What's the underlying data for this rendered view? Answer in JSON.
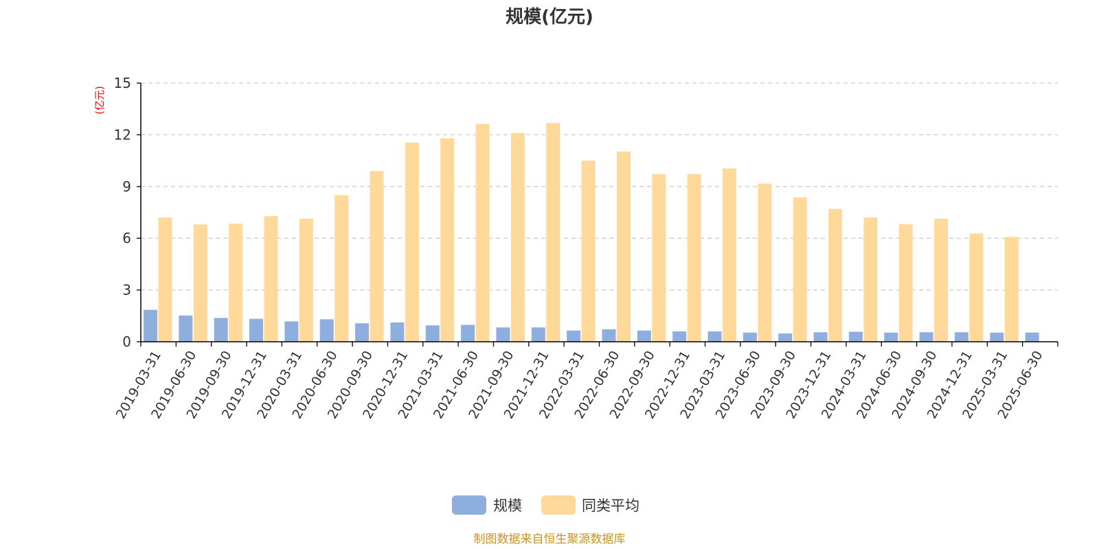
{
  "colors": {
    "scale": "#8eaedd",
    "peer_avg": "#ffd99a",
    "unit_label": "#ff0000",
    "footer": "#c8941e",
    "grid": "#cccccc",
    "axis": "#000000"
  },
  "footer_text": "制图数据来自恒生聚源数据库",
  "chart_data": {
    "type": "bar",
    "title": "规模(亿元)",
    "ylabel": "(亿元)",
    "xlabel": "",
    "ylim": [
      0,
      15
    ],
    "yticks": [
      0,
      3,
      6,
      9,
      12,
      15
    ],
    "grid": true,
    "legend_position": "bottom",
    "categories": [
      "2019-03-31",
      "2019-06-30",
      "2019-09-30",
      "2019-12-31",
      "2020-03-31",
      "2020-06-30",
      "2020-09-30",
      "2020-12-31",
      "2021-03-31",
      "2021-06-30",
      "2021-09-30",
      "2021-12-31",
      "2022-03-31",
      "2022-06-30",
      "2022-09-30",
      "2022-12-31",
      "2023-03-31",
      "2023-06-30",
      "2023-09-30",
      "2023-12-31",
      "2024-03-31",
      "2024-06-30",
      "2024-09-30",
      "2024-12-31",
      "2025-03-31",
      "2025-06-30"
    ],
    "series": [
      {
        "name": "规模",
        "values": [
          1.85,
          1.52,
          1.38,
          1.33,
          1.18,
          1.3,
          1.07,
          1.12,
          0.95,
          0.98,
          0.83,
          0.83,
          0.65,
          0.72,
          0.65,
          0.6,
          0.6,
          0.53,
          0.48,
          0.55,
          0.58,
          0.53,
          0.55,
          0.55,
          0.53,
          0.53
        ]
      },
      {
        "name": "同类平均",
        "values": [
          7.2,
          6.8,
          6.85,
          7.28,
          7.13,
          8.5,
          9.9,
          11.55,
          11.8,
          12.63,
          12.1,
          12.68,
          10.5,
          11.03,
          9.72,
          9.73,
          10.05,
          9.17,
          8.37,
          7.7,
          7.2,
          6.82,
          7.13,
          6.28,
          6.07,
          null
        ]
      }
    ]
  }
}
